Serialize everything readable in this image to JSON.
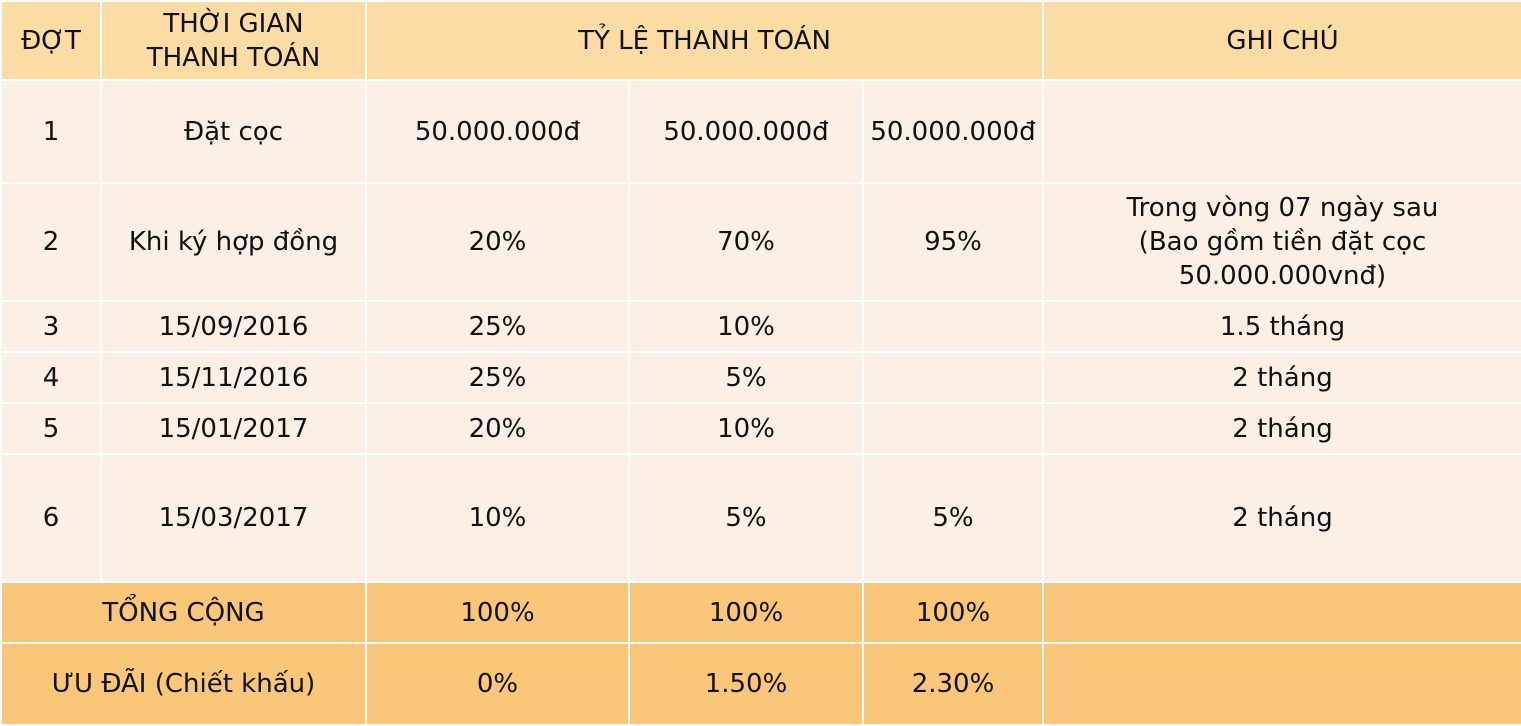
{
  "header": {
    "dot": "ĐỢT",
    "time": "THỜI GIAN\nTHANH TOÁN",
    "rate": "TỶ LỆ THANH TOÁN",
    "note": "GHI CHÚ"
  },
  "rows": [
    {
      "dot": "1",
      "time": "Đặt cọc",
      "p1": "50.000.000đ",
      "p2": "50.000.000đ",
      "p3": "50.000.000đ",
      "note": ""
    },
    {
      "dot": "2",
      "time": "Khi ký hợp đồng",
      "p1": "20%",
      "p2": "70%",
      "p3": "95%",
      "note": "Trong vòng 07 ngày sau\n(Bao gồm tiền đặt cọc\n50.000.000vnđ)"
    },
    {
      "dot": "3",
      "time": "15/09/2016",
      "p1": "25%",
      "p2": "10%",
      "p3": "",
      "note": "1.5 tháng"
    },
    {
      "dot": "4",
      "time": "15/11/2016",
      "p1": "25%",
      "p2": "5%",
      "p3": "",
      "note": "2 tháng"
    },
    {
      "dot": "5",
      "time": "15/01/2017",
      "p1": "20%",
      "p2": "10%",
      "p3": "",
      "note": "2 tháng"
    },
    {
      "dot": "6",
      "time": "15/03/2017",
      "p1": "10%",
      "p2": "5%",
      "p3": "5%",
      "note": "2 tháng"
    }
  ],
  "total": {
    "label": "TỔNG CỘNG",
    "p1": "100%",
    "p2": "100%",
    "p3": "100%",
    "note": ""
  },
  "discount": {
    "label": "ƯU ĐÃI (Chiết khấu)",
    "p1": "0%",
    "p2": "1.50%",
    "p3": "2.30%",
    "note": ""
  },
  "colors": {
    "header_bg": "#fcdca5",
    "body_bg": "#fcefe6",
    "footer_bg": "#f9c67a"
  }
}
